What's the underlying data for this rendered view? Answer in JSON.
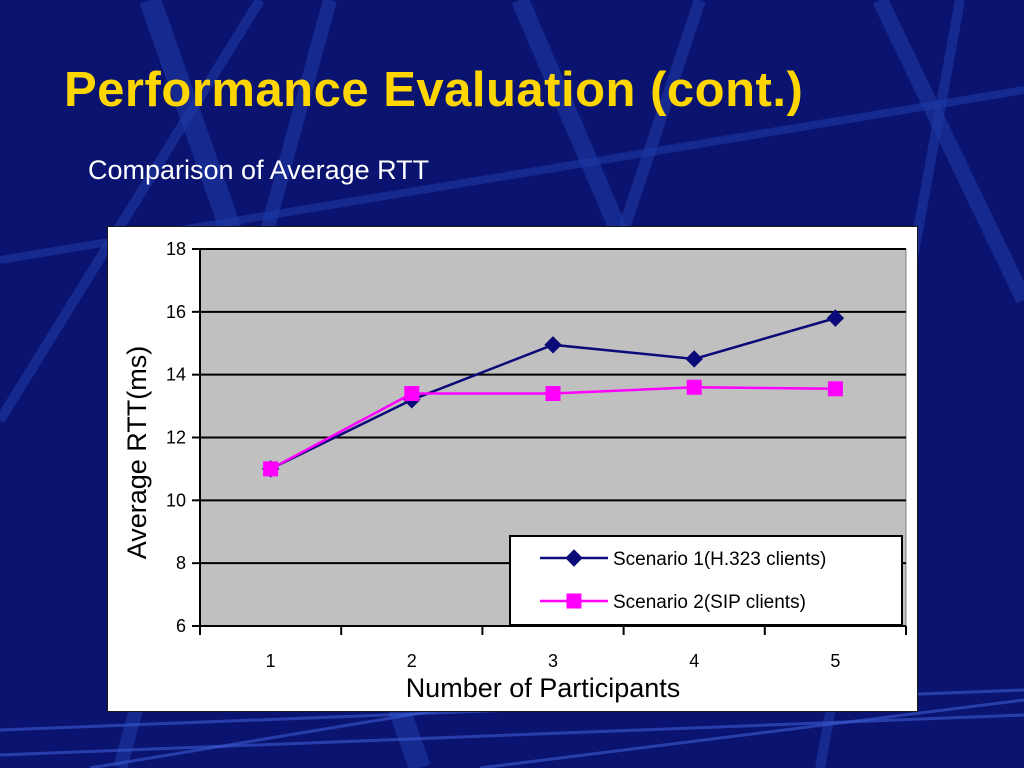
{
  "slide": {
    "title": "Performance Evaluation (cont.)",
    "subtitle": "Comparison of Average RTT"
  },
  "colors": {
    "background": "#0a1470",
    "title": "#ffd600",
    "series1": "#0a0a78",
    "series2": "#ff00ff",
    "plot_area": "#c0c0c0"
  },
  "chart_data": {
    "type": "line",
    "x": [
      1,
      2,
      3,
      4,
      5
    ],
    "xlabel": "Number of Participants",
    "ylabel": "Average RTT(ms)",
    "ylim": [
      6,
      18
    ],
    "yticks": [
      6,
      8,
      10,
      12,
      14,
      16,
      18
    ],
    "grid": true,
    "legend": "bottom-right",
    "series": [
      {
        "name": "Scenario 1(H.323 clients)",
        "marker": "diamond",
        "color": "#0a0a78",
        "values": [
          11.0,
          13.2,
          14.95,
          14.5,
          15.8
        ]
      },
      {
        "name": "Scenario 2(SIP clients)",
        "marker": "square",
        "color": "#ff00ff",
        "values": [
          11.0,
          13.4,
          13.4,
          13.6,
          13.55
        ]
      }
    ]
  }
}
